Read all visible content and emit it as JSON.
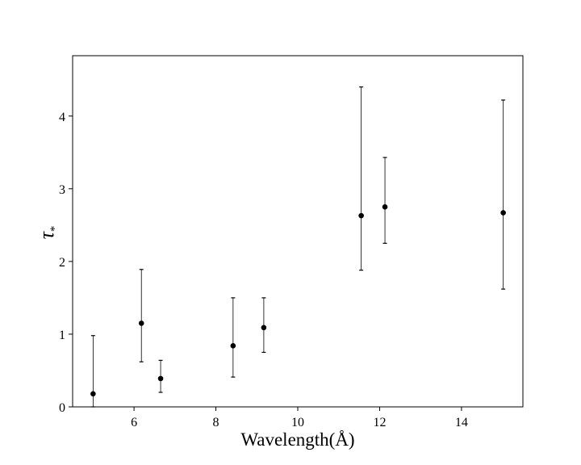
{
  "chart_data": {
    "type": "scatter",
    "title": "",
    "xlabel": "Wavelength(Å)",
    "ylabel": "τ",
    "ylabel_subscript": "*",
    "xlim": [
      4.5,
      15.5
    ],
    "ylim": [
      0,
      4.83
    ],
    "xticks": [
      6,
      8,
      10,
      12,
      14
    ],
    "yticks": [
      0,
      1,
      2,
      3,
      4
    ],
    "grid": false,
    "marker_color": "#000000",
    "errorbar_color": "#000000",
    "points": [
      {
        "x": 5.0,
        "y": 0.18,
        "ylow": 0.0,
        "yhigh": 0.98
      },
      {
        "x": 6.18,
        "y": 1.15,
        "ylow": 0.62,
        "yhigh": 1.89
      },
      {
        "x": 6.65,
        "y": 0.39,
        "ylow": 0.2,
        "yhigh": 0.64
      },
      {
        "x": 8.42,
        "y": 0.84,
        "ylow": 0.41,
        "yhigh": 1.5
      },
      {
        "x": 9.17,
        "y": 1.09,
        "ylow": 0.75,
        "yhigh": 1.5
      },
      {
        "x": 11.55,
        "y": 2.63,
        "ylow": 1.88,
        "yhigh": 4.4
      },
      {
        "x": 12.13,
        "y": 2.75,
        "ylow": 2.25,
        "yhigh": 3.43
      },
      {
        "x": 15.02,
        "y": 2.67,
        "ylow": 1.62,
        "yhigh": 4.22
      }
    ]
  }
}
